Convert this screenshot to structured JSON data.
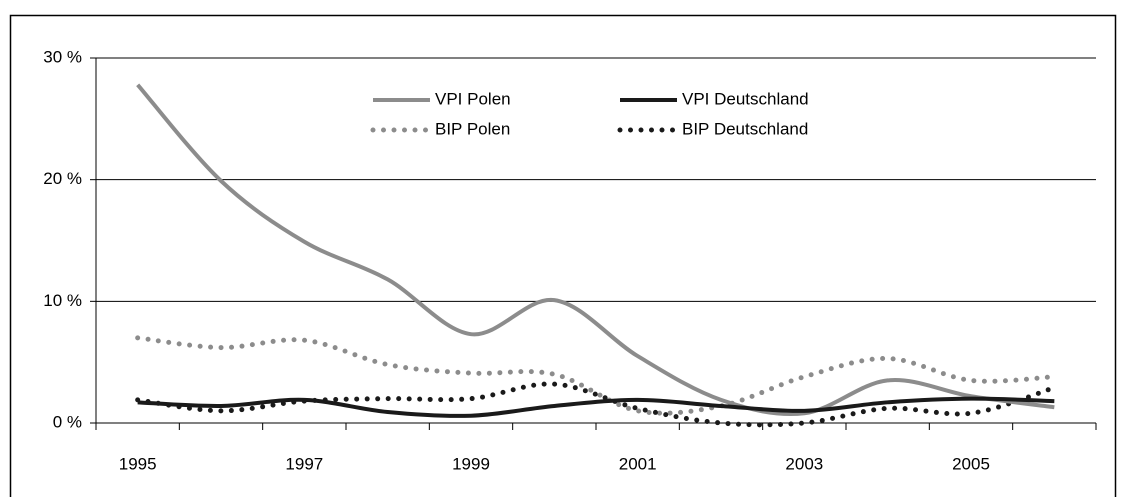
{
  "chart_data": {
    "type": "line",
    "categories": [
      "1995",
      null,
      "1997",
      null,
      "1999",
      null,
      "2001",
      null,
      "2003",
      null,
      "2005",
      null
    ],
    "series": [
      {
        "name": "VPI Polen",
        "color": "#8c8c8c",
        "style": "solid",
        "values": [
          27.8,
          19.9,
          14.9,
          11.8,
          7.3,
          10.1,
          5.5,
          1.9,
          0.8,
          3.5,
          2.2,
          1.3
        ]
      },
      {
        "name": "VPI Deutschland",
        "color": "#1a1a1a",
        "style": "solid",
        "values": [
          1.7,
          1.4,
          1.9,
          0.9,
          0.6,
          1.4,
          1.9,
          1.4,
          1.0,
          1.7,
          2.0,
          1.8
        ]
      },
      {
        "name": "BIP Polen",
        "color": "#8c8c8c",
        "style": "dotted",
        "values": [
          7.0,
          6.2,
          6.8,
          4.8,
          4.1,
          4.0,
          1.0,
          1.4,
          3.8,
          5.3,
          3.5,
          3.8
        ]
      },
      {
        "name": "BIP Deutschland",
        "color": "#1a1a1a",
        "style": "dotted",
        "values": [
          1.9,
          1.0,
          1.8,
          2.0,
          2.0,
          3.2,
          1.2,
          0.0,
          0.0,
          1.2,
          0.8,
          2.9
        ]
      }
    ],
    "ylim": [
      0,
      30
    ],
    "yticks": [
      {
        "value": 0,
        "label": "0 %"
      },
      {
        "value": 10,
        "label": "10 %"
      },
      {
        "value": 20,
        "label": "20 %"
      },
      {
        "value": 30,
        "label": "30 %"
      }
    ],
    "grid": true
  }
}
